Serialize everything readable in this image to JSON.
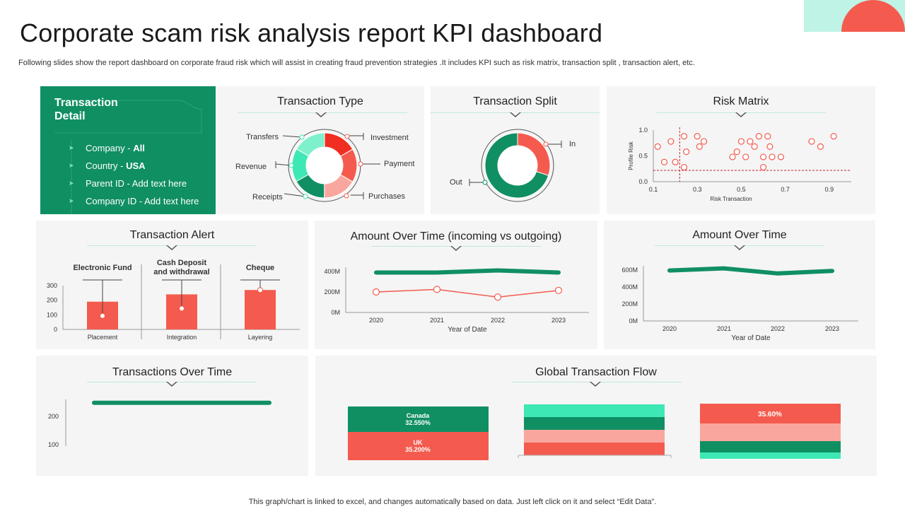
{
  "header": {
    "title": "Corporate scam risk analysis report KPI dashboard",
    "subtitle": "Following slides show the report dashboard on corporate fraud risk which will assist in creating fraud prevention strategies .It includes  KPI such as risk matrix, transaction split , transaction alert, etc."
  },
  "footer": "This graph/chart is linked to excel,  and changes automatically based on data. Just left click on it and select “Edit Data”.",
  "colors": {
    "green": "#108f63",
    "red": "#f45b4e",
    "mint": "#3ee8b5",
    "pink": "#f9a79e",
    "light_mint": "#bff3e6"
  },
  "transaction_detail": {
    "title": "Transaction Detail",
    "items": [
      {
        "label": "Company - ",
        "value": "All"
      },
      {
        "label": "Country - ",
        "value": "USA"
      },
      {
        "label": "Parent ID - Add text here",
        "value": ""
      },
      {
        "label": "Company ID - Add text here",
        "value": ""
      }
    ]
  },
  "transaction_type": {
    "title": "Transaction Type",
    "labels": [
      "Transfers",
      "Investment",
      "Revenue",
      "Payment",
      "Receipts",
      "Purchases"
    ]
  },
  "transaction_split": {
    "title": "Transaction Split",
    "label_in": "In",
    "label_out": "Out"
  },
  "risk_matrix": {
    "title": "Risk Matrix"
  },
  "transaction_alert": {
    "title": "Transaction Alert"
  },
  "amount_io": {
    "title": "Amount Over Time (incoming vs outgoing)"
  },
  "amount_time": {
    "title": "Amount Over Time"
  },
  "transactions_time": {
    "title": "Transactions Over Time"
  },
  "global_flow": {
    "title": "Global Transaction Flow",
    "bar1": {
      "top_name": "Canada",
      "top_value": "32.550%",
      "bottom_name": "UK",
      "bottom_value": "35.200%"
    },
    "bar3_label": "35.60%"
  },
  "chart_data": [
    {
      "id": "transaction_type",
      "type": "pie",
      "title": "Transaction Type",
      "categories": [
        "Investment",
        "Payment",
        "Purchases",
        "Receipts",
        "Revenue",
        "Transfers"
      ],
      "values": [
        16.7,
        16.7,
        16.7,
        16.7,
        16.7,
        16.5
      ],
      "colors": [
        "#f02e22",
        "#f45b4e",
        "#f9a79e",
        "#108f63",
        "#3ee8b5",
        "#7ff0cc"
      ]
    },
    {
      "id": "transaction_split",
      "type": "pie",
      "title": "Transaction Split",
      "categories": [
        "In",
        "Out"
      ],
      "values": [
        30,
        70
      ]
    },
    {
      "id": "risk_matrix",
      "type": "scatter",
      "title": "Risk Matrix",
      "xlabel": "Risk Transaction",
      "ylabel": "Profile Risk",
      "xlim": [
        0.1,
        1.0
      ],
      "ylim": [
        0.0,
        1.0
      ],
      "xticks": [
        "0.1",
        "0.3",
        "0.5",
        "0.7",
        "0.9"
      ],
      "yticks": [
        "0.0",
        "0.5",
        "1.0"
      ],
      "threshold_x": 0.22,
      "threshold_y": 0.22,
      "points": [
        [
          0.12,
          0.68
        ],
        [
          0.15,
          0.38
        ],
        [
          0.18,
          0.78
        ],
        [
          0.2,
          0.38
        ],
        [
          0.24,
          0.28
        ],
        [
          0.24,
          0.88
        ],
        [
          0.25,
          0.58
        ],
        [
          0.3,
          0.88
        ],
        [
          0.31,
          0.68
        ],
        [
          0.33,
          0.78
        ],
        [
          0.46,
          0.48
        ],
        [
          0.48,
          0.58
        ],
        [
          0.5,
          0.78
        ],
        [
          0.52,
          0.48
        ],
        [
          0.54,
          0.78
        ],
        [
          0.56,
          0.68
        ],
        [
          0.58,
          0.88
        ],
        [
          0.6,
          0.48
        ],
        [
          0.6,
          0.28
        ],
        [
          0.62,
          0.88
        ],
        [
          0.63,
          0.68
        ],
        [
          0.64,
          0.48
        ],
        [
          0.68,
          0.48
        ],
        [
          0.82,
          0.78
        ],
        [
          0.86,
          0.68
        ],
        [
          0.92,
          0.88
        ]
      ]
    },
    {
      "id": "transaction_alert",
      "type": "bar",
      "title": "Transaction Alert",
      "categories": [
        "Placement",
        "Integration",
        "Layering"
      ],
      "headers": [
        "Electronic Fund",
        "Cash Deposit and withdrawal",
        "Cheque"
      ],
      "values": [
        190,
        240,
        270
      ],
      "ylim": [
        0,
        300
      ],
      "yticks": [
        "0",
        "100",
        "200",
        "300"
      ]
    },
    {
      "id": "amount_io",
      "type": "line",
      "title": "Amount Over Time (incoming vs outgoing)",
      "xlabel": "Year of Date",
      "categories": [
        "2020",
        "2021",
        "2022",
        "2023"
      ],
      "ylim": [
        0,
        400
      ],
      "yticks": [
        "0M",
        "200M",
        "400M"
      ],
      "series": [
        {
          "name": "Incoming",
          "values": [
            390,
            390,
            410,
            390
          ]
        },
        {
          "name": "Outgoing",
          "values": [
            200,
            225,
            150,
            215
          ]
        }
      ]
    },
    {
      "id": "amount_time",
      "type": "line",
      "title": "Amount Over Time",
      "xlabel": "Year of Date",
      "categories": [
        "2020",
        "2021",
        "2022",
        "2023"
      ],
      "ylim": [
        0,
        600
      ],
      "yticks": [
        "0M",
        "200M",
        "400M",
        "600M"
      ],
      "series": [
        {
          "name": "Amount",
          "values": [
            595,
            620,
            560,
            590
          ]
        }
      ]
    },
    {
      "id": "transactions_time",
      "type": "line",
      "title": "Transactions Over Time",
      "yticks": [
        "100",
        "200"
      ],
      "series": [
        {
          "name": "Transactions",
          "values": [
            248,
            248
          ]
        }
      ]
    }
  ]
}
